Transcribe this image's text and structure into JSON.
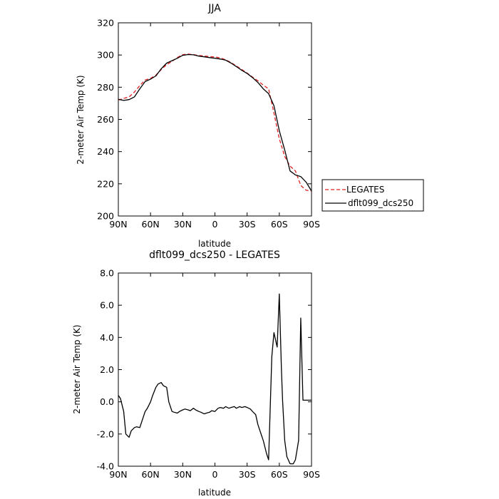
{
  "chart_data": [
    {
      "type": "line",
      "title": "JJA",
      "xlabel": "latitude",
      "ylabel": "2-meter Air Temp (K)",
      "xlim": [
        90,
        -90
      ],
      "ylim": [
        200,
        320
      ],
      "x_ticks": [
        90,
        60,
        30,
        0,
        -30,
        -60,
        -90
      ],
      "x_tick_labels": [
        "90N",
        "60N",
        "30N",
        "0",
        "30S",
        "60S",
        "90S"
      ],
      "y_ticks": [
        200,
        220,
        240,
        260,
        280,
        300,
        320
      ],
      "y_tick_labels": [
        "200",
        "220",
        "240",
        "260",
        "280",
        "300",
        "320"
      ],
      "legend_position": "outside-right",
      "series": [
        {
          "name": "LEGATES",
          "color": "#e02020",
          "style": "dashed",
          "x": [
            90,
            85,
            80,
            75,
            70,
            65,
            60,
            55,
            50,
            45,
            40,
            35,
            30,
            25,
            20,
            15,
            10,
            5,
            0,
            -5,
            -10,
            -15,
            -20,
            -25,
            -30,
            -35,
            -40,
            -45,
            -50,
            -55,
            -60,
            -65,
            -70,
            -75,
            -80,
            -85,
            -90
          ],
          "values": [
            272.0,
            273.0,
            274.0,
            277.0,
            281.0,
            284.5,
            285.5,
            287.5,
            291.0,
            294.0,
            296.0,
            298.5,
            300.2,
            300.6,
            300.2,
            299.7,
            299.4,
            299.0,
            298.8,
            298.2,
            297.0,
            295.3,
            293.2,
            291.0,
            288.8,
            286.3,
            284.0,
            281.3,
            279.0,
            264.0,
            248.0,
            237.0,
            231.0,
            228.0,
            219.0,
            216.0,
            215.5
          ]
        },
        {
          "name": "dflt099_dcs250",
          "color": "#000000",
          "style": "solid",
          "x": [
            90,
            85,
            80,
            75,
            70,
            65,
            60,
            55,
            50,
            45,
            40,
            35,
            30,
            25,
            20,
            15,
            10,
            5,
            0,
            -5,
            -10,
            -15,
            -20,
            -25,
            -30,
            -35,
            -40,
            -45,
            -50,
            -55,
            -60,
            -65,
            -70,
            -75,
            -80,
            -85,
            -90
          ],
          "values": [
            272.5,
            271.8,
            272.3,
            274.0,
            279.0,
            283.5,
            285.0,
            287.0,
            291.5,
            295.0,
            296.5,
            298.0,
            299.8,
            300.3,
            300.1,
            299.3,
            298.9,
            298.4,
            298.0,
            297.5,
            296.8,
            295.0,
            292.8,
            290.5,
            288.5,
            286.0,
            283.0,
            279.0,
            276.0,
            268.5,
            253.0,
            241.0,
            228.0,
            225.5,
            224.5,
            221.0,
            215.5
          ]
        }
      ]
    },
    {
      "type": "line",
      "title": "dflt099_dcs250 - LEGATES",
      "xlabel": "latitude",
      "ylabel": "2-meter Air Temp (K)",
      "xlim": [
        90,
        -90
      ],
      "ylim": [
        -4.0,
        8.0
      ],
      "x_ticks": [
        90,
        60,
        30,
        0,
        -30,
        -60,
        -90
      ],
      "x_tick_labels": [
        "90N",
        "60N",
        "30N",
        "0",
        "30S",
        "60S",
        "90S"
      ],
      "y_ticks": [
        -4,
        -2,
        0,
        2,
        4,
        6,
        8
      ],
      "y_tick_labels": [
        "-4.0",
        "-2.0",
        "0.0",
        "2.0",
        "4.0",
        "6.0",
        "8.0"
      ],
      "series": [
        {
          "color": "#000000",
          "style": "solid",
          "x": [
            90,
            88,
            85,
            83,
            80,
            78,
            75,
            73,
            70,
            68,
            65,
            63,
            60,
            58,
            55,
            53,
            50,
            48,
            45,
            43,
            40,
            38,
            35,
            33,
            30,
            28,
            25,
            23,
            20,
            18,
            15,
            13,
            10,
            8,
            5,
            3,
            0,
            -3,
            -5,
            -8,
            -10,
            -13,
            -15,
            -18,
            -20,
            -23,
            -25,
            -28,
            -30,
            -33,
            -35,
            -38,
            -40,
            -43,
            -45,
            -48,
            -50,
            -53,
            -55,
            -58,
            -60,
            -62,
            -63,
            -65,
            -67,
            -70,
            -73,
            -75,
            -78,
            -80,
            -82,
            -84,
            -86,
            -88,
            -90
          ],
          "values": [
            0.4,
            0.2,
            -0.6,
            -2.0,
            -2.2,
            -1.8,
            -1.6,
            -1.55,
            -1.6,
            -1.2,
            -0.6,
            -0.4,
            0.0,
            0.4,
            0.9,
            1.1,
            1.2,
            1.0,
            0.9,
            0.0,
            -0.6,
            -0.65,
            -0.7,
            -0.6,
            -0.5,
            -0.45,
            -0.5,
            -0.55,
            -0.4,
            -0.5,
            -0.6,
            -0.65,
            -0.75,
            -0.7,
            -0.65,
            -0.55,
            -0.6,
            -0.4,
            -0.35,
            -0.4,
            -0.3,
            -0.4,
            -0.35,
            -0.3,
            -0.4,
            -0.3,
            -0.35,
            -0.3,
            -0.35,
            -0.45,
            -0.6,
            -0.8,
            -1.4,
            -2.0,
            -2.4,
            -3.2,
            -3.6,
            2.8,
            4.3,
            3.4,
            6.7,
            2.0,
            0.1,
            -2.4,
            -3.4,
            -3.85,
            -3.85,
            -3.6,
            -2.4,
            5.2,
            0.1,
            0.1,
            0.1,
            0.1,
            0.1
          ]
        }
      ]
    }
  ]
}
